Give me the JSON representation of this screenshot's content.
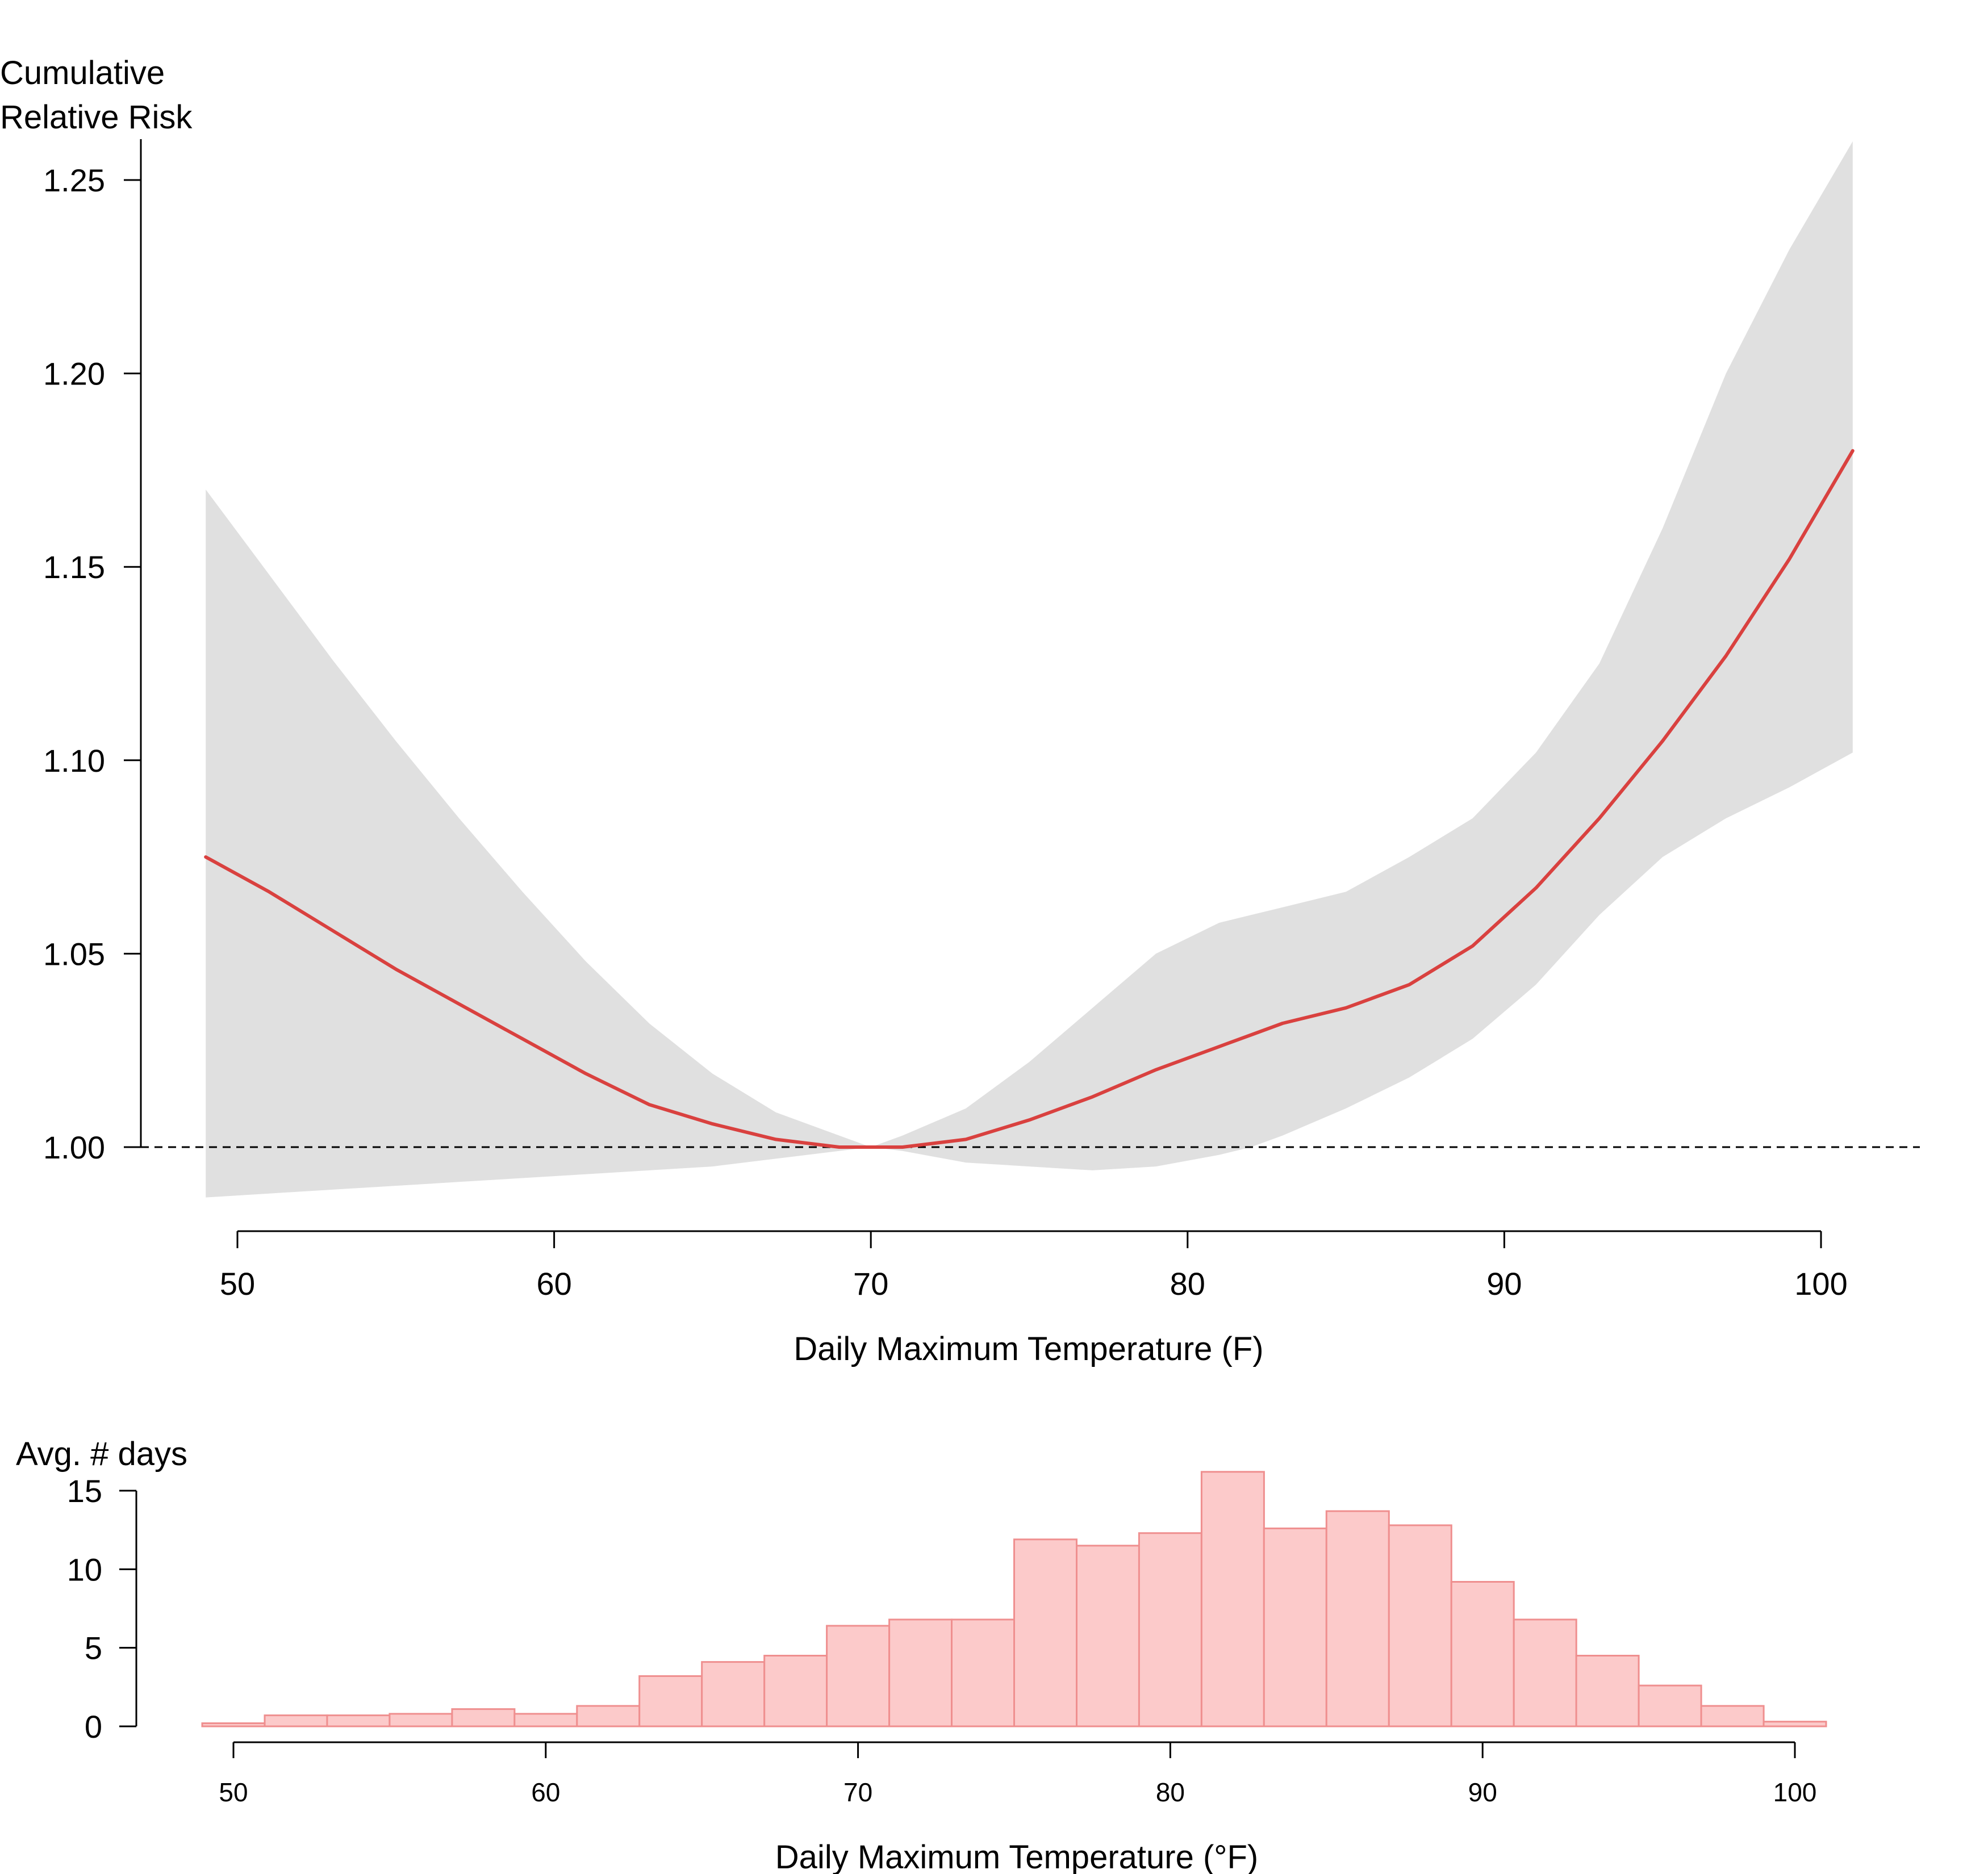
{
  "chart_data": [
    {
      "type": "line",
      "ylabel": "Cumulative\nRelative Risk",
      "xlabel": "Daily Maximum Temperature (F)",
      "xlim": [
        49,
        101
      ],
      "ylim": [
        0.987,
        1.26
      ],
      "xticks": [
        50,
        60,
        70,
        80,
        90,
        100
      ],
      "yticks": [
        1.0,
        1.05,
        1.1,
        1.15,
        1.2,
        1.25
      ],
      "x_tick_labels": [
        "50",
        "60",
        "70",
        "80",
        "90",
        "100"
      ],
      "y_tick_labels": [
        "1.00",
        "1.05",
        "1.10",
        "1.15",
        "1.20",
        "1.25"
      ],
      "reference_line": {
        "y": 1.0,
        "style": "dashed"
      },
      "grid": false,
      "colors": {
        "line": "#d9413f",
        "band": "#e0e0e0",
        "reference": "#000000"
      },
      "series": [
        {
          "x": [
            49,
            51,
            53,
            55,
            57,
            59,
            61,
            63,
            65,
            67,
            69,
            70,
            71,
            73,
            75,
            77,
            79,
            81,
            82,
            83,
            85,
            87,
            89,
            91,
            93,
            95,
            97,
            99,
            101
          ],
          "y": [
            1.075,
            1.066,
            1.056,
            1.046,
            1.037,
            1.028,
            1.019,
            1.011,
            1.006,
            1.002,
            1.0,
            1.0,
            1.0,
            1.002,
            1.007,
            1.013,
            1.02,
            1.026,
            1.029,
            1.032,
            1.036,
            1.042,
            1.052,
            1.067,
            1.085,
            1.105,
            1.127,
            1.152,
            1.18
          ],
          "lower": [
            0.987,
            0.988,
            0.989,
            0.99,
            0.991,
            0.992,
            0.993,
            0.994,
            0.995,
            0.997,
            0.999,
            1.0,
            0.999,
            0.996,
            0.995,
            0.994,
            0.995,
            0.998,
            1.0,
            1.003,
            1.01,
            1.018,
            1.028,
            1.042,
            1.06,
            1.075,
            1.085,
            1.093,
            1.102
          ],
          "upper": [
            1.17,
            1.148,
            1.126,
            1.105,
            1.085,
            1.066,
            1.048,
            1.032,
            1.019,
            1.009,
            1.003,
            1.0,
            1.003,
            1.01,
            1.022,
            1.036,
            1.05,
            1.058,
            1.06,
            1.062,
            1.066,
            1.075,
            1.085,
            1.102,
            1.125,
            1.16,
            1.2,
            1.232,
            1.26
          ]
        }
      ]
    },
    {
      "type": "bar",
      "ylabel": "Avg. # days",
      "xlabel": "Daily Maximum Temperature (°F)",
      "xlim": [
        49,
        101
      ],
      "ylim": [
        0,
        16.3
      ],
      "xticks": [
        50,
        60,
        70,
        80,
        90,
        100
      ],
      "yticks": [
        0,
        5,
        10,
        15
      ],
      "x_tick_labels": [
        "50",
        "60",
        "70",
        "80",
        "90",
        "100"
      ],
      "y_tick_labels": [
        "0",
        "5",
        "10",
        "15"
      ],
      "bin_width": 2,
      "bin_starts": [
        49,
        51,
        53,
        55,
        57,
        59,
        61,
        63,
        65,
        67,
        69,
        71,
        73,
        75,
        77,
        79,
        81,
        83,
        85,
        87,
        89,
        91,
        93,
        95,
        97,
        99
      ],
      "values": [
        0.2,
        0.7,
        0.7,
        0.8,
        1.1,
        0.8,
        1.3,
        3.2,
        4.1,
        4.5,
        6.4,
        6.8,
        6.8,
        11.9,
        11.5,
        12.3,
        16.2,
        12.6,
        13.7,
        12.8,
        9.2,
        6.8,
        4.5,
        2.6,
        1.3,
        0.3
      ],
      "grid": false,
      "colors": {
        "fill": "#fccaca",
        "stroke": "#ef8f8f"
      }
    }
  ]
}
